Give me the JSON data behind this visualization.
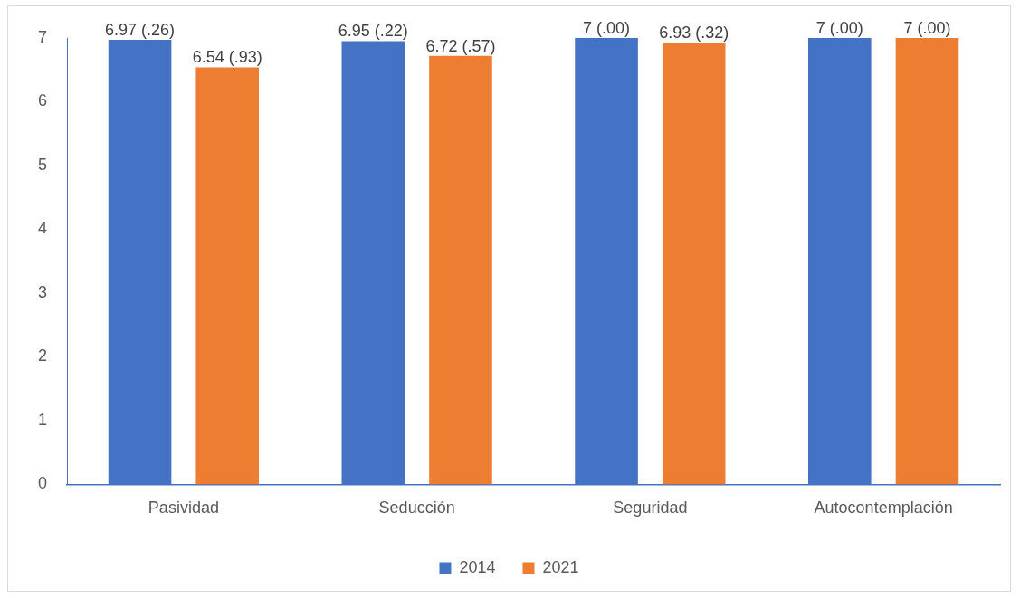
{
  "chart_data": {
    "type": "bar",
    "categories": [
      "Pasividad",
      "Seducción",
      "Seguridad",
      "Autocontemplación"
    ],
    "series": [
      {
        "name": "2014",
        "color": "#4472c4",
        "values": [
          6.97,
          6.95,
          7,
          7
        ],
        "value_labels": [
          "6.97 (.26)",
          "6.95 (.22)",
          "7 (.00)",
          "7 (.00)"
        ]
      },
      {
        "name": "2021",
        "color": "#ed7d31",
        "values": [
          6.54,
          6.72,
          6.93,
          7
        ],
        "value_labels": [
          "6.54 (.93)",
          "6.72 (.57)",
          "6.93 (.32)",
          "7 (.00)"
        ]
      }
    ],
    "ylim": [
      0,
      7
    ],
    "yticks": [
      0,
      1,
      2,
      3,
      4,
      5,
      6,
      7
    ],
    "grid": false,
    "legend": "bottom"
  }
}
